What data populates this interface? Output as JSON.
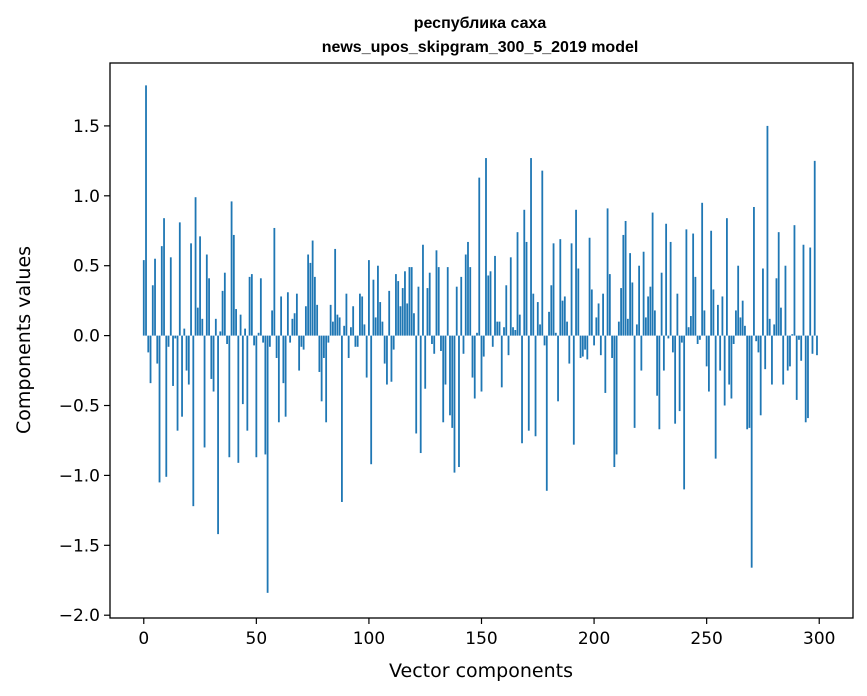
{
  "chart_data": {
    "type": "bar",
    "title_line1": "республика саха",
    "title_line2": "news_upos_skipgram_300_5_2019 model",
    "xlabel": "Vector components",
    "ylabel": "Components values",
    "xlim": [
      -15,
      315
    ],
    "ylim": [
      -2.02,
      1.95
    ],
    "xticks": [
      0,
      50,
      100,
      150,
      200,
      250,
      300
    ],
    "yticks": [
      -2.0,
      -1.5,
      -1.0,
      -0.5,
      0.0,
      0.5,
      1.0,
      1.5
    ],
    "ytick_labels": [
      "−2.0",
      "−1.5",
      "−1.0",
      "−0.5",
      "0.0",
      "0.5",
      "1.0",
      "1.5"
    ],
    "bar_color": "#1f77b4",
    "values": [
      0.54,
      1.79,
      -0.12,
      -0.34,
      0.36,
      0.55,
      -0.2,
      -1.05,
      0.64,
      0.84,
      -1.01,
      -0.08,
      0.56,
      -0.36,
      -0.02,
      -0.68,
      0.81,
      -0.58,
      0.05,
      -0.25,
      -0.35,
      0.66,
      -1.22,
      0.99,
      0.2,
      0.71,
      0.12,
      -0.8,
      0.58,
      0.41,
      -0.31,
      -0.4,
      0.12,
      -1.42,
      0.03,
      0.32,
      0.45,
      -0.06,
      -0.87,
      0.96,
      0.72,
      0.19,
      -0.91,
      0.15,
      -0.49,
      0.05,
      -0.68,
      0.42,
      0.44,
      -0.07,
      -0.87,
      0.02,
      0.41,
      -0.05,
      -0.85,
      -1.84,
      -0.08,
      0.18,
      0.77,
      -0.16,
      -0.62,
      0.28,
      -0.34,
      -0.58,
      0.31,
      -0.05,
      0.12,
      0.16,
      0.3,
      -0.25,
      -0.08,
      -0.1,
      0.21,
      0.58,
      0.52,
      0.68,
      0.42,
      0.22,
      -0.26,
      -0.47,
      -0.16,
      -0.62,
      -0.05,
      0.22,
      0.1,
      0.62,
      0.15,
      0.13,
      -1.19,
      0.07,
      0.3,
      -0.16,
      0.06,
      0.21,
      -0.08,
      -0.08,
      0.3,
      0.28,
      0.08,
      -0.3,
      0.54,
      -0.92,
      0.4,
      0.13,
      0.5,
      0.24,
      0.1,
      -0.2,
      -0.35,
      0.32,
      -0.33,
      -0.1,
      0.44,
      0.39,
      0.21,
      0.34,
      0.46,
      0.23,
      0.49,
      0.49,
      0.16,
      -0.7,
      0.35,
      -0.84,
      0.65,
      -0.38,
      0.34,
      0.45,
      -0.06,
      -0.13,
      0.61,
      0.49,
      -0.11,
      -0.62,
      -0.35,
      0.49,
      -0.57,
      -0.66,
      -0.98,
      0.35,
      -0.94,
      0.42,
      -0.13,
      0.58,
      0.67,
      0.49,
      -0.3,
      -0.45,
      0.02,
      1.13,
      -0.4,
      -0.15,
      1.27,
      0.43,
      0.46,
      -0.08,
      0.57,
      0.1,
      0.1,
      -0.37,
      0.06,
      0.36,
      -0.14,
      0.56,
      0.06,
      0.04,
      0.74,
      0.15,
      -0.77,
      0.9,
      0.67,
      -0.68,
      1.27,
      0.3,
      -0.72,
      0.24,
      0.08,
      1.18,
      -0.07,
      -1.11,
      0.17,
      0.36,
      0.66,
      0.02,
      -0.47,
      0.69,
      0.25,
      0.28,
      0.1,
      -0.2,
      0.66,
      -0.78,
      0.9,
      0.48,
      -0.16,
      -0.15,
      -0.1,
      -0.17,
      0.7,
      0.33,
      -0.07,
      0.13,
      0.23,
      -0.14,
      0.3,
      -0.41,
      0.91,
      0.44,
      -0.16,
      -0.94,
      -0.85,
      0.1,
      0.34,
      0.72,
      0.82,
      0.12,
      0.59,
      0.38,
      -0.66,
      0.08,
      0.5,
      -0.25,
      0.6,
      0.13,
      0.28,
      0.35,
      0.88,
      0.18,
      -0.43,
      -0.67,
      0.45,
      -0.25,
      0.8,
      -0.02,
      0.67,
      -0.12,
      -0.63,
      0.3,
      -0.54,
      -0.05,
      -1.1,
      0.76,
      0.06,
      0.14,
      0.73,
      0.42,
      -0.06,
      -0.03,
      0.95,
      0.18,
      -0.22,
      -0.4,
      0.75,
      0.33,
      -0.88,
      0.22,
      -0.25,
      0.28,
      -0.5,
      0.84,
      -0.35,
      -0.45,
      -0.06,
      0.18,
      0.5,
      0.13,
      0.25,
      0.07,
      -0.67,
      -0.66,
      -1.66,
      0.92,
      -0.04,
      -0.12,
      -0.57,
      0.48,
      -0.24,
      1.5,
      0.12,
      -0.35,
      0.08,
      0.41,
      0.74,
      0.2,
      -0.35,
      0.5,
      -0.25,
      -0.22,
      0.01,
      0.79,
      -0.46,
      -0.03,
      -0.18,
      0.65,
      -0.62,
      -0.59,
      0.63,
      -0.13,
      1.25,
      -0.14
    ]
  }
}
